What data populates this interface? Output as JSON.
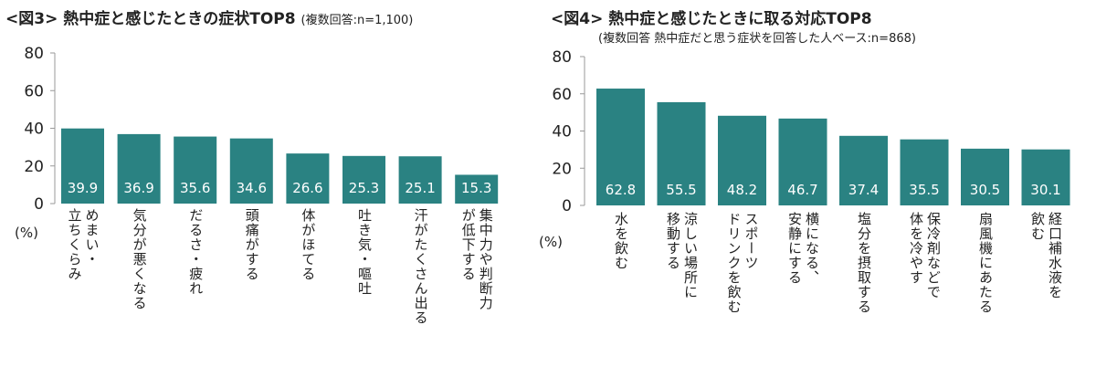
{
  "chart_data": [
    {
      "type": "bar",
      "title": "<図3> 熱中症と感じたときの症状TOP8",
      "subtitle": "(複数回答:n=1,100)",
      "ylabel": "(%)",
      "ylim": [
        0,
        80
      ],
      "yticks": [
        0,
        20,
        40,
        60,
        80
      ],
      "grid": false,
      "color": "#2A8282",
      "categories": [
        "めまい・\n立ちくらみ",
        "気分が悪くなる",
        "だるさ・疲れ",
        "頭痛がする",
        "体がほてる",
        "吐き気・嘔吐",
        "汗がたくさん出る",
        "集中力や判断力\nが低下する"
      ],
      "values": [
        39.9,
        36.9,
        35.6,
        34.6,
        26.6,
        25.3,
        25.1,
        15.3
      ],
      "data_labels": [
        "39.9",
        "36.9",
        "35.6",
        "34.6",
        "26.6",
        "25.3",
        "25.1",
        "15.3"
      ]
    },
    {
      "type": "bar",
      "title": "<図4> 熱中症と感じたときに取る対応TOP8",
      "subtitle": "(複数回答 熱中症だと思う症状を回答した人ベース:n=868)",
      "ylabel": "(%)",
      "ylim": [
        0,
        80
      ],
      "yticks": [
        0,
        20,
        40,
        60,
        80
      ],
      "grid": false,
      "color": "#2A8282",
      "categories": [
        "水を飲む",
        "涼しい場所に\n移動する",
        "スポーツ\nドリンクを飲む",
        "横になる、\n安静にする",
        "塩分を摂取する",
        "保冷剤などで\n体を冷やす",
        "扇風機にあたる",
        "経口補水液を\n飲む"
      ],
      "values": [
        62.8,
        55.5,
        48.2,
        46.7,
        37.4,
        35.5,
        30.5,
        30.1
      ],
      "data_labels": [
        "62.8",
        "55.5",
        "48.2",
        "46.7",
        "37.4",
        "35.5",
        "30.5",
        "30.1"
      ]
    }
  ]
}
